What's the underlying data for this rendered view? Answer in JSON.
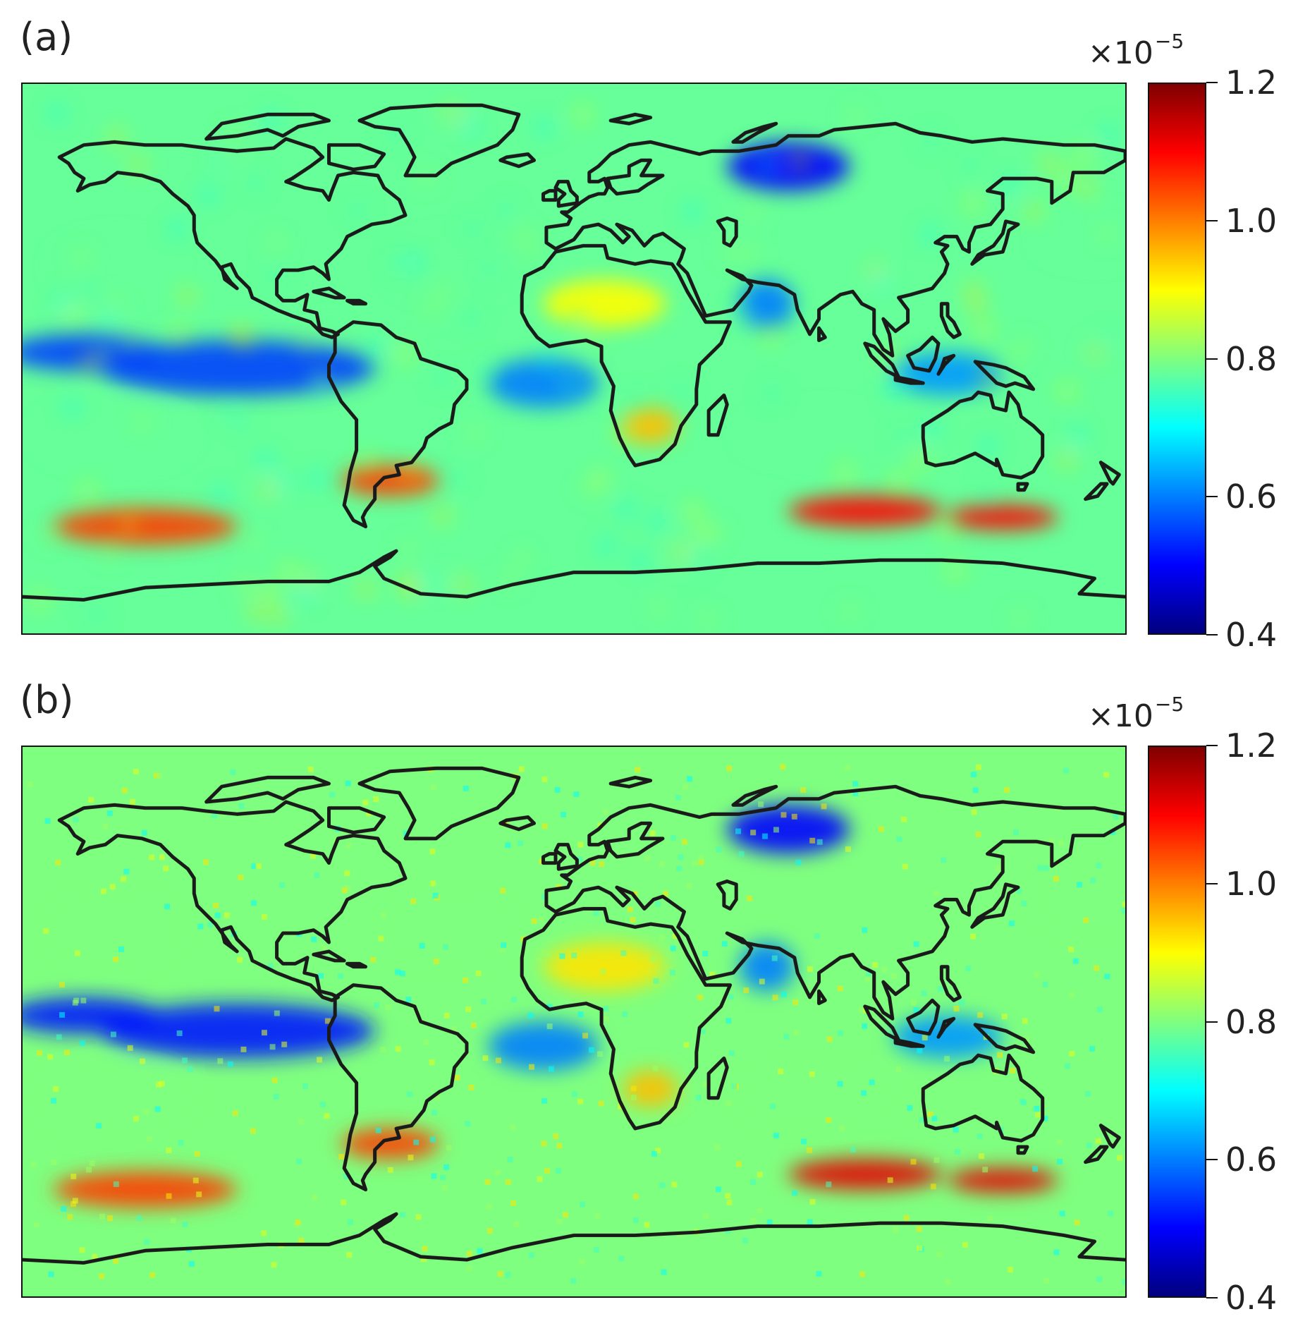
{
  "colormap": {
    "name": "jet",
    "stops": [
      "#00007f",
      "#0000ff",
      "#007fff",
      "#00ffff",
      "#7fff7f",
      "#ffff00",
      "#ff7f00",
      "#ff0000",
      "#7f0000"
    ]
  },
  "colorbar": {
    "offset_base": "×10",
    "offset_exp": "−5",
    "vmin": 0.4,
    "vmax": 1.2,
    "ticks": [
      {
        "value": 1.2,
        "label": "1.2"
      },
      {
        "value": 1.0,
        "label": "1.0"
      },
      {
        "value": 0.8,
        "label": "0.8"
      },
      {
        "value": 0.6,
        "label": "0.6"
      },
      {
        "value": 0.4,
        "label": "0.4"
      }
    ]
  },
  "panels": [
    {
      "label": "(a)",
      "style": "smooth"
    },
    {
      "label": "(b)",
      "style": "noisy"
    }
  ],
  "chart_data": [
    {
      "type": "heatmap",
      "title": "(a)",
      "projection": "equirectangular global map with coastlines",
      "colormap": "jet",
      "value_range": [
        0.4,
        1.2
      ],
      "scale_factor": "×10^-5",
      "field_features": [
        {
          "region": "Equatorial east Pacific",
          "value": 0.55
        },
        {
          "region": "Equatorial Atlantic",
          "value": 0.6
        },
        {
          "region": "Western Siberia",
          "value": 0.5
        },
        {
          "region": "Northern Arabian Sea",
          "value": 0.6
        },
        {
          "region": "Maritime Continent",
          "value": 0.62
        },
        {
          "region": "Southern Ocean south of Australia",
          "value": 1.1
        },
        {
          "region": "Southern Ocean south Pacific",
          "value": 1.05
        },
        {
          "region": "Southern Africa",
          "value": 0.95
        },
        {
          "region": "Northern Africa / Sahara",
          "value": 0.9
        },
        {
          "region": "Global ocean background",
          "value": 0.78
        }
      ]
    },
    {
      "type": "heatmap",
      "title": "(b)",
      "projection": "equirectangular global map with coastlines",
      "colormap": "jet",
      "value_range": [
        0.4,
        1.2
      ],
      "scale_factor": "×10^-5",
      "field_features": [
        {
          "region": "Equatorial east Pacific",
          "value": 0.52
        },
        {
          "region": "Equatorial Atlantic",
          "value": 0.6
        },
        {
          "region": "Western Siberia",
          "value": 0.5
        },
        {
          "region": "Northern Arabian Sea",
          "value": 0.6
        },
        {
          "region": "Maritime Continent",
          "value": 0.62
        },
        {
          "region": "Southern Ocean south of Australia",
          "value": 1.12
        },
        {
          "region": "Southern Ocean south Pacific",
          "value": 1.05
        },
        {
          "region": "Southern Africa",
          "value": 0.95
        },
        {
          "region": "Northern Africa / Sahara",
          "value": 0.92
        },
        {
          "region": "Global ocean background",
          "value": 0.8
        }
      ]
    }
  ]
}
